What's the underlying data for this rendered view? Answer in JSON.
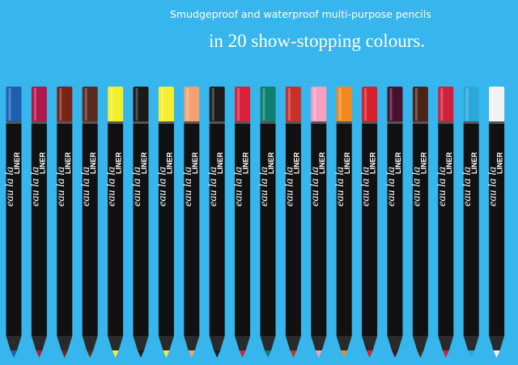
{
  "header": {
    "line1": "Smudgeproof and waterproof multi-purpose pencils",
    "line2": "in 20 show-stopping colours."
  },
  "pencil": {
    "name": "eau la la",
    "sub": "LINER"
  },
  "pencils": [
    {
      "color": "#1f5fb0"
    },
    {
      "color": "#b0184a"
    },
    {
      "color": "#7a2418"
    },
    {
      "color": "#5a2a20"
    },
    {
      "color": "#f2ef2a"
    },
    {
      "color": "#1a1a1a"
    },
    {
      "color": "#f5ee30"
    },
    {
      "color": "#f4a070"
    },
    {
      "color": "#1c1c1c"
    },
    {
      "color": "#d8213a"
    },
    {
      "color": "#0f7f6e"
    },
    {
      "color": "#c8302a"
    },
    {
      "color": "#f6a0c0"
    },
    {
      "color": "#f08a20"
    },
    {
      "color": "#d81f2a"
    },
    {
      "color": "#4a1030"
    },
    {
      "color": "#4a2418"
    },
    {
      "color": "#d0203a"
    },
    {
      "color": "#2aa8d8"
    },
    {
      "color": "#f2f2f2"
    }
  ]
}
